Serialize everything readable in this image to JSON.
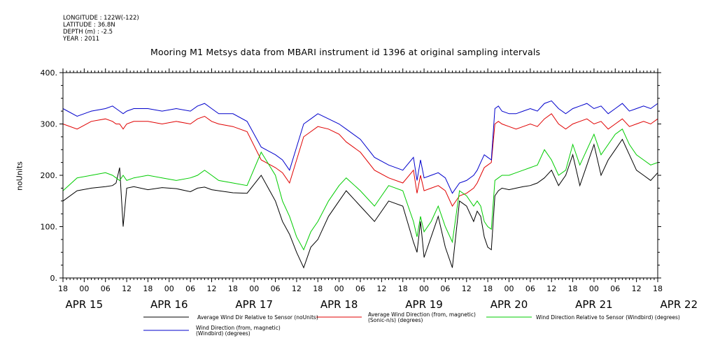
{
  "meta": [
    "LONGITUDE : 122W(-122)",
    "LATITUDE : 36.8N",
    "DEPTH (m) : -2.5",
    "YEAR : 2011"
  ],
  "chart_data": {
    "type": "line",
    "title": "Mooring M1 Metsys data from MBARI instrument id 1396 at original sampling intervals",
    "xlabel": "",
    "ylabel": "noUnits",
    "ylim": [
      0,
      400
    ],
    "yticks": [
      0,
      100,
      200,
      300,
      400
    ],
    "ytick_labels": [
      "0.",
      "100.",
      "200.",
      "300.",
      "400."
    ],
    "xlim_hours": [
      0,
      168
    ],
    "xtick_labels": [
      "18",
      "00",
      "06",
      "12",
      "18",
      "00",
      "06",
      "12",
      "18",
      "00",
      "06",
      "12",
      "18",
      "00",
      "06",
      "12",
      "18",
      "00",
      "06",
      "12",
      "18",
      "00",
      "06",
      "12",
      "18",
      "00",
      "06",
      "12",
      "18"
    ],
    "date_labels": [
      "APR 15",
      "APR 16",
      "APR 17",
      "APR 18",
      "APR 19",
      "APR 20",
      "APR 21",
      "APR 22"
    ],
    "grid": false,
    "legend_placement": "bottom",
    "x_description": "Hours since APR 14 18:00, 2011",
    "series": [
      {
        "name": "Average Wind Dir Relative to Sensor (noUnits)",
        "color": "#000000",
        "x": [
          0,
          4,
          8,
          12,
          14,
          15,
          16,
          17,
          18,
          20,
          24,
          28,
          32,
          36,
          38,
          40,
          42,
          44,
          48,
          52,
          56,
          60,
          62,
          64,
          66,
          68,
          70,
          72,
          75,
          78,
          80,
          84,
          88,
          92,
          96,
          99,
          100,
          101,
          102,
          104,
          106,
          108,
          110,
          112,
          114,
          116,
          117,
          118,
          119,
          120,
          121,
          122,
          123,
          124,
          126,
          128,
          130,
          132,
          134,
          136,
          138,
          140,
          142,
          144,
          146,
          148,
          150,
          152,
          154,
          156,
          158,
          160,
          162,
          164,
          166,
          168
        ],
        "values": [
          150,
          170,
          175,
          178,
          180,
          185,
          215,
          100,
          175,
          178,
          172,
          176,
          174,
          168,
          175,
          177,
          172,
          170,
          166,
          165,
          200,
          150,
          110,
          85,
          50,
          20,
          60,
          75,
          120,
          150,
          170,
          140,
          110,
          150,
          140,
          70,
          50,
          110,
          40,
          80,
          120,
          60,
          20,
          150,
          140,
          110,
          130,
          120,
          80,
          60,
          55,
          160,
          170,
          175,
          172,
          175,
          178,
          180,
          185,
          195,
          210,
          180,
          200,
          240,
          180,
          220,
          260,
          200,
          230,
          250,
          270,
          240,
          210,
          200,
          190,
          205
        ]
      },
      {
        "name": "Average Wind Direction (from, magnetic) (Sonic-n/s) (degrees)",
        "color": "#e00000",
        "x": [
          0,
          4,
          8,
          12,
          14,
          15,
          16,
          17,
          18,
          20,
          24,
          28,
          32,
          36,
          38,
          40,
          42,
          44,
          48,
          52,
          56,
          60,
          62,
          64,
          66,
          68,
          70,
          72,
          75,
          78,
          80,
          84,
          88,
          92,
          96,
          99,
          100,
          101,
          102,
          104,
          106,
          108,
          110,
          112,
          114,
          116,
          117,
          118,
          119,
          120,
          121,
          122,
          123,
          124,
          126,
          128,
          130,
          132,
          134,
          136,
          138,
          140,
          142,
          144,
          146,
          148,
          150,
          152,
          154,
          156,
          158,
          160,
          162,
          164,
          166,
          168
        ],
        "values": [
          300,
          290,
          305,
          310,
          305,
          300,
          300,
          290,
          300,
          305,
          305,
          300,
          305,
          300,
          310,
          315,
          305,
          300,
          295,
          285,
          230,
          215,
          205,
          185,
          230,
          275,
          285,
          295,
          290,
          280,
          265,
          245,
          210,
          195,
          185,
          210,
          165,
          200,
          170,
          175,
          180,
          170,
          140,
          160,
          165,
          175,
          185,
          200,
          215,
          220,
          225,
          300,
          305,
          300,
          295,
          290,
          295,
          300,
          295,
          310,
          320,
          300,
          290,
          300,
          305,
          310,
          300,
          305,
          290,
          300,
          310,
          295,
          300,
          305,
          300,
          310
        ]
      },
      {
        "name": "Wind Direction Relative to Sensor (Windbird) (degrees)",
        "color": "#00cc00",
        "x": [
          0,
          4,
          8,
          12,
          14,
          15,
          16,
          17,
          18,
          20,
          24,
          28,
          32,
          36,
          38,
          40,
          42,
          44,
          48,
          52,
          56,
          60,
          62,
          64,
          66,
          68,
          70,
          72,
          75,
          78,
          80,
          84,
          88,
          92,
          96,
          99,
          100,
          101,
          102,
          104,
          106,
          108,
          110,
          112,
          114,
          116,
          117,
          118,
          119,
          120,
          121,
          122,
          123,
          124,
          126,
          128,
          130,
          132,
          134,
          136,
          138,
          140,
          142,
          144,
          146,
          148,
          150,
          152,
          154,
          156,
          158,
          160,
          162,
          164,
          166,
          168
        ],
        "values": [
          170,
          195,
          200,
          205,
          200,
          195,
          190,
          200,
          190,
          195,
          200,
          195,
          190,
          195,
          200,
          210,
          200,
          190,
          185,
          180,
          245,
          200,
          150,
          120,
          80,
          55,
          90,
          110,
          150,
          180,
          195,
          170,
          140,
          180,
          170,
          110,
          80,
          120,
          90,
          110,
          140,
          100,
          70,
          170,
          160,
          140,
          150,
          140,
          110,
          100,
          95,
          190,
          195,
          200,
          200,
          205,
          210,
          215,
          220,
          250,
          230,
          200,
          210,
          260,
          220,
          250,
          280,
          240,
          260,
          280,
          290,
          260,
          240,
          230,
          220,
          225
        ]
      },
      {
        "name": "Wind Direction (from, magnetic) (Windbird) (degrees)",
        "color": "#0000cc",
        "x": [
          0,
          4,
          8,
          12,
          14,
          15,
          16,
          17,
          18,
          20,
          24,
          28,
          32,
          36,
          38,
          40,
          42,
          44,
          48,
          52,
          56,
          60,
          62,
          64,
          66,
          68,
          70,
          72,
          75,
          78,
          80,
          84,
          88,
          92,
          96,
          99,
          100,
          101,
          102,
          104,
          106,
          108,
          110,
          112,
          114,
          116,
          117,
          118,
          119,
          120,
          121,
          122,
          123,
          124,
          126,
          128,
          130,
          132,
          134,
          136,
          138,
          140,
          142,
          144,
          146,
          148,
          150,
          152,
          154,
          156,
          158,
          160,
          162,
          164,
          166,
          168
        ],
        "values": [
          330,
          315,
          325,
          330,
          335,
          330,
          325,
          320,
          325,
          330,
          330,
          325,
          330,
          325,
          335,
          340,
          330,
          320,
          320,
          305,
          255,
          240,
          230,
          210,
          255,
          300,
          310,
          320,
          310,
          300,
          290,
          270,
          235,
          220,
          210,
          235,
          190,
          230,
          195,
          200,
          205,
          195,
          165,
          185,
          190,
          200,
          210,
          225,
          240,
          235,
          230,
          330,
          335,
          325,
          320,
          320,
          325,
          330,
          325,
          340,
          345,
          330,
          320,
          330,
          335,
          340,
          330,
          335,
          320,
          330,
          340,
          325,
          330,
          335,
          330,
          340
        ]
      }
    ]
  }
}
